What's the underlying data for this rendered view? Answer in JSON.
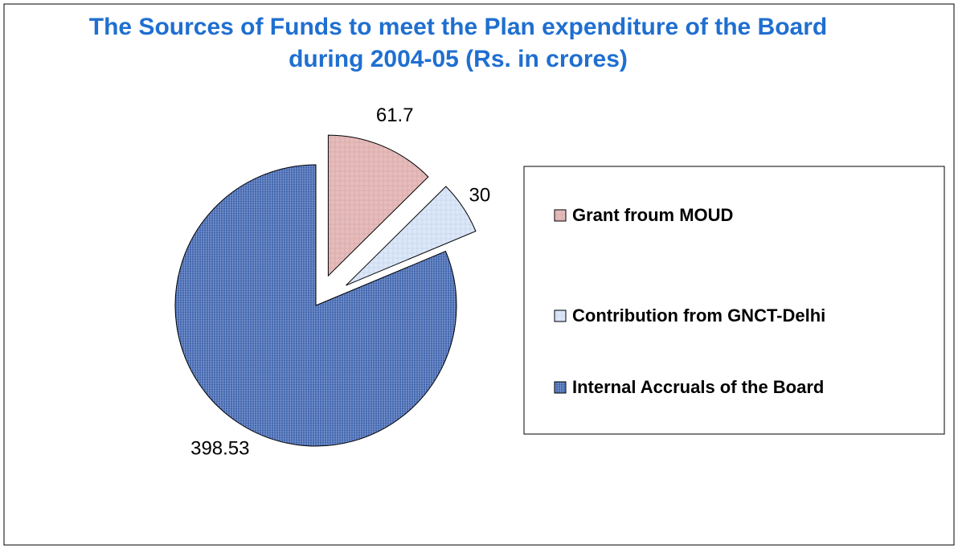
{
  "chart_data": {
    "type": "pie",
    "title": "The Sources of Funds to meet the Plan expenditure of the Board during 2004-05 (Rs. in crores)",
    "categories": [
      "Grant froum MOUD",
      "Contribution from GNCT-Delhi",
      "Internal Accruals of  the Board"
    ],
    "values": [
      61.7,
      30,
      398.53
    ],
    "colors": [
      "#e6bcbc",
      "#dce8f8",
      "#5577bb"
    ],
    "legend": "right"
  }
}
